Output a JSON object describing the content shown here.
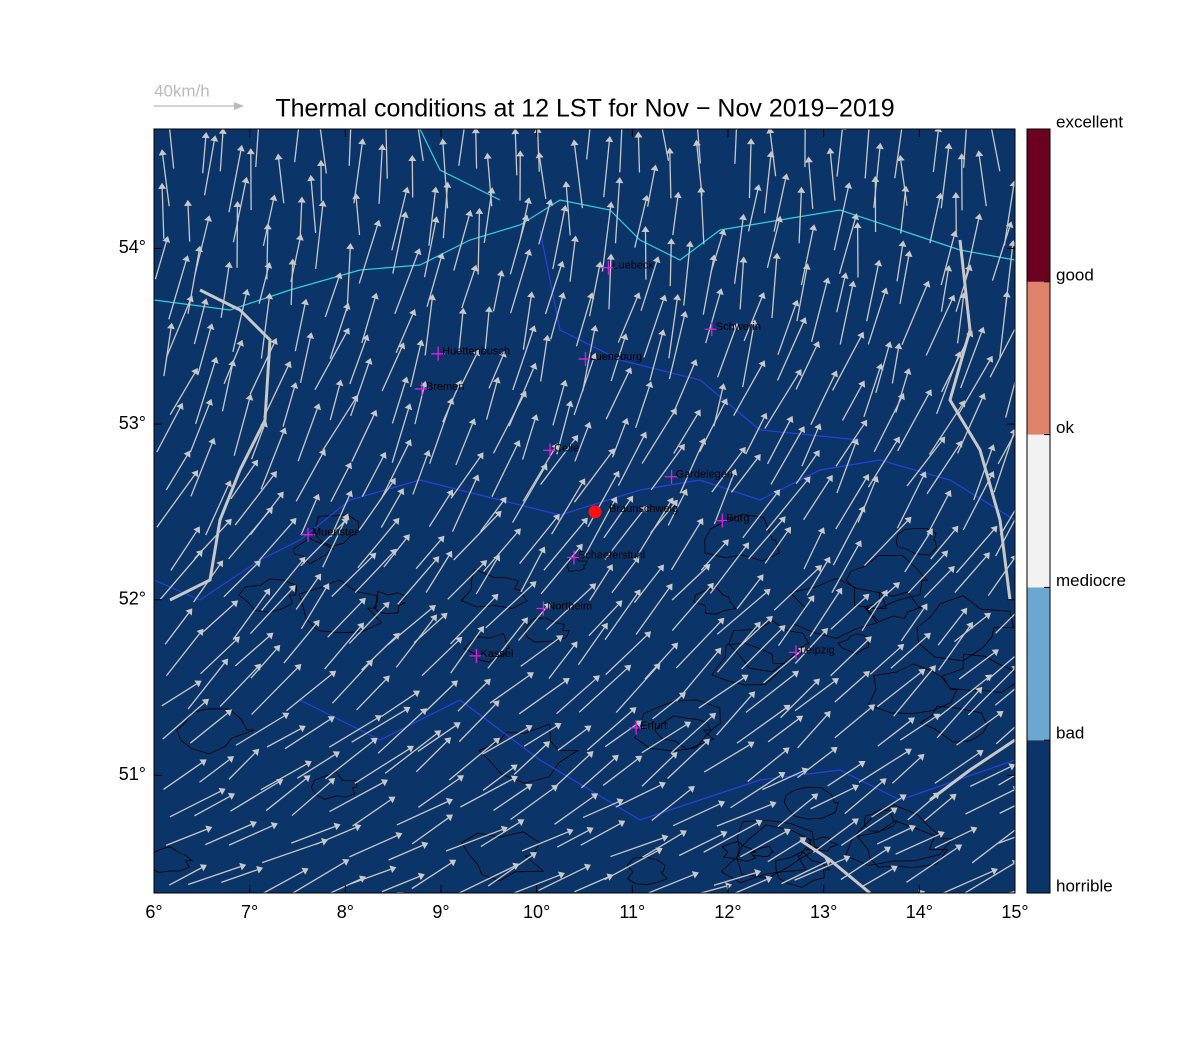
{
  "title": "Thermal conditions at 12 LST for Nov − Nov  2019−2019",
  "wind_scale": "40km/h",
  "map": {
    "xlim": [
      6,
      15
    ],
    "ylim": [
      50.33,
      54.68
    ],
    "xticks": [
      {
        "value": 6,
        "label": "6°"
      },
      {
        "value": 7,
        "label": "7°"
      },
      {
        "value": 8,
        "label": "8°"
      },
      {
        "value": 9,
        "label": "9°"
      },
      {
        "value": 10,
        "label": "10°"
      },
      {
        "value": 11,
        "label": "11°"
      },
      {
        "value": 12,
        "label": "12°"
      },
      {
        "value": 13,
        "label": "13°"
      },
      {
        "value": 14,
        "label": "14°"
      },
      {
        "value": 15,
        "label": "15°"
      }
    ],
    "yticks": [
      {
        "value": 51,
        "label": "51°"
      },
      {
        "value": 52,
        "label": "52°"
      },
      {
        "value": 53,
        "label": "53°"
      },
      {
        "value": 54,
        "label": "54°"
      }
    ],
    "background": "#0b3468",
    "cities": [
      {
        "name": "Luebeck",
        "lon": 10.75,
        "lat": 53.89
      },
      {
        "name": "Schwerin",
        "lon": 11.83,
        "lat": 53.54
      },
      {
        "name": "Huettenbusch",
        "lon": 8.97,
        "lat": 53.4
      },
      {
        "name": "Lueneburg",
        "lon": 10.51,
        "lat": 53.37
      },
      {
        "name": "Bremen",
        "lon": 8.8,
        "lat": 53.2
      },
      {
        "name": "Celle",
        "lon": 10.14,
        "lat": 52.85
      },
      {
        "name": "Gardelegen",
        "lon": 11.41,
        "lat": 52.7
      },
      {
        "name": "Burg",
        "lon": 11.94,
        "lat": 52.45
      },
      {
        "name": "Muenster",
        "lon": 7.61,
        "lat": 52.37
      },
      {
        "name": "Schaeferstuhl",
        "lon": 10.39,
        "lat": 52.24
      },
      {
        "name": "Northeim",
        "lon": 10.07,
        "lat": 51.95
      },
      {
        "name": "Kassel",
        "lon": 9.37,
        "lat": 51.68
      },
      {
        "name": "Leipzig",
        "lon": 12.71,
        "lat": 51.7
      },
      {
        "name": "Erfurt",
        "lon": 11.04,
        "lat": 51.27
      }
    ],
    "site": {
      "name": "Braunschweig",
      "lon": 10.61,
      "lat": 52.5
    }
  },
  "colorbar": {
    "labels": [
      "horrible",
      "bad",
      "mediocre",
      "ok",
      "good",
      "excellent"
    ],
    "colors": [
      "#0b3468",
      "#6aa8d0",
      "#f2f2f2",
      "#e0826a",
      "#6b0020"
    ]
  }
}
